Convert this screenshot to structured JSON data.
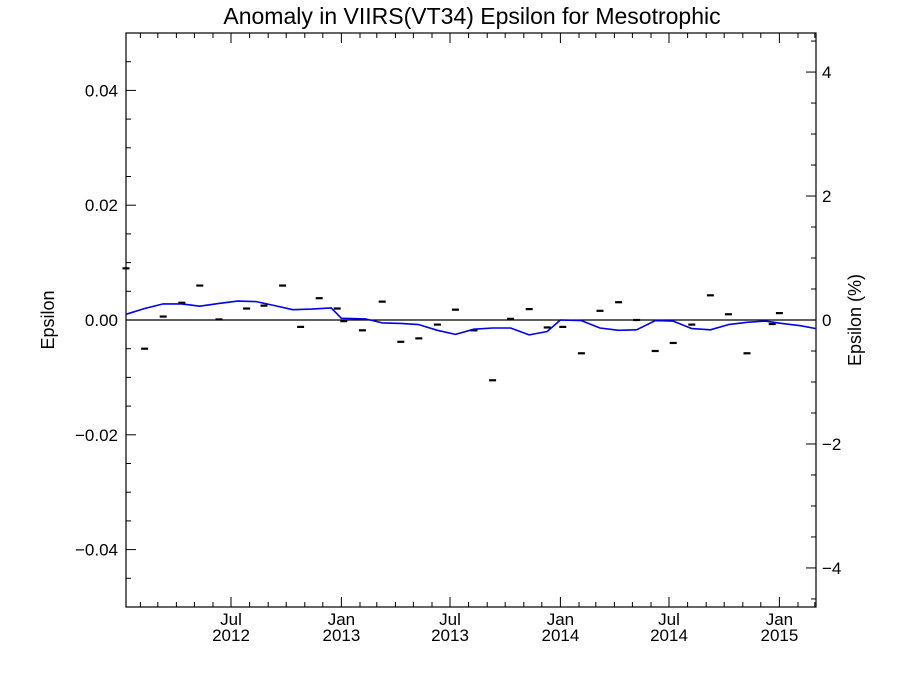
{
  "chart_data": {
    "type": "scatter",
    "title": "Anomaly in VIIRS(VT34) Epsilon for Mesotrophic",
    "ylabel": "Epsilon",
    "y2label": "Epsilon (%)",
    "xlim": [
      "2012-01-08",
      "2015-03-03"
    ],
    "ylim": [
      -0.05,
      0.05
    ],
    "y2lim": [
      -4.63,
      4.63
    ],
    "grid": false,
    "x_ticks": [
      {
        "date": "2012-07-01",
        "month": "Jul",
        "year": "2012"
      },
      {
        "date": "2013-01-01",
        "month": "Jan",
        "year": "2013"
      },
      {
        "date": "2013-07-01",
        "month": "Jul",
        "year": "2013"
      },
      {
        "date": "2014-01-01",
        "month": "Jan",
        "year": "2014"
      },
      {
        "date": "2014-07-01",
        "month": "Jul",
        "year": "2014"
      },
      {
        "date": "2015-01-01",
        "month": "Jan",
        "year": "2015"
      }
    ],
    "y_ticks": [
      "−0.04",
      "−0.02",
      "0.00",
      "0.02",
      "0.04"
    ],
    "y_tick_values": [
      -0.04,
      -0.02,
      0.0,
      0.02,
      0.04
    ],
    "y2_ticks": [
      "−4",
      "−2",
      "0",
      "2",
      "4"
    ],
    "y2_tick_values": [
      -4,
      -2,
      0,
      2,
      4
    ],
    "reference_line": {
      "y": 0.0,
      "color": "#000000"
    },
    "series": [
      {
        "type": "scatter",
        "marker": "dash",
        "color": "#000000",
        "points": [
          {
            "x": "2012-01-08",
            "y": 0.009
          },
          {
            "x": "2012-02-08",
            "y": -0.005
          },
          {
            "x": "2012-03-10",
            "y": 0.0006
          },
          {
            "x": "2012-04-10",
            "y": 0.003
          },
          {
            "x": "2012-05-10",
            "y": 0.006
          },
          {
            "x": "2012-06-11",
            "y": 0.0001
          },
          {
            "x": "2012-07-27",
            "y": 0.002
          },
          {
            "x": "2012-08-25",
            "y": 0.0025
          },
          {
            "x": "2012-09-25",
            "y": 0.006
          },
          {
            "x": "2012-10-25",
            "y": -0.0012
          },
          {
            "x": "2012-11-25",
            "y": 0.0038
          },
          {
            "x": "2012-12-25",
            "y": 0.002
          },
          {
            "x": "2013-01-05",
            "y": -0.0002
          },
          {
            "x": "2013-02-05",
            "y": -0.0018
          },
          {
            "x": "2013-03-10",
            "y": 0.0032
          },
          {
            "x": "2013-04-10",
            "y": -0.0038
          },
          {
            "x": "2013-05-10",
            "y": -0.0032
          },
          {
            "x": "2013-06-10",
            "y": -0.0008
          },
          {
            "x": "2013-07-10",
            "y": 0.0018
          },
          {
            "x": "2013-08-10",
            "y": -0.0018
          },
          {
            "x": "2013-09-10",
            "y": -0.0105
          },
          {
            "x": "2013-10-10",
            "y": 0.0002
          },
          {
            "x": "2013-11-10",
            "y": 0.0019
          },
          {
            "x": "2013-12-10",
            "y": -0.0013
          },
          {
            "x": "2014-01-05",
            "y": -0.0012
          },
          {
            "x": "2014-02-05",
            "y": -0.0058
          },
          {
            "x": "2014-03-08",
            "y": 0.0016
          },
          {
            "x": "2014-04-08",
            "y": 0.0031
          },
          {
            "x": "2014-05-08",
            "y": 0.0
          },
          {
            "x": "2014-06-08",
            "y": -0.0054
          },
          {
            "x": "2014-07-08",
            "y": -0.004
          },
          {
            "x": "2014-08-08",
            "y": -0.0008
          },
          {
            "x": "2014-09-08",
            "y": 0.0043
          },
          {
            "x": "2014-10-08",
            "y": 0.001
          },
          {
            "x": "2014-11-08",
            "y": -0.0058
          },
          {
            "x": "2014-12-20",
            "y": -0.0007
          },
          {
            "x": "2015-01-01",
            "y": 0.0012
          }
        ]
      },
      {
        "type": "line",
        "color": "#0000ee",
        "points": [
          {
            "x": "2012-01-08",
            "y": 0.001
          },
          {
            "x": "2012-02-08",
            "y": 0.002
          },
          {
            "x": "2012-03-10",
            "y": 0.0028
          },
          {
            "x": "2012-04-10",
            "y": 0.0028
          },
          {
            "x": "2012-05-10",
            "y": 0.0024
          },
          {
            "x": "2012-06-11",
            "y": 0.0029
          },
          {
            "x": "2012-07-12",
            "y": 0.0033
          },
          {
            "x": "2012-08-12",
            "y": 0.0032
          },
          {
            "x": "2012-09-12",
            "y": 0.0025
          },
          {
            "x": "2012-10-12",
            "y": 0.0018
          },
          {
            "x": "2012-11-12",
            "y": 0.0019
          },
          {
            "x": "2012-12-15",
            "y": 0.0021
          },
          {
            "x": "2013-01-01",
            "y": 0.0003
          },
          {
            "x": "2013-02-10",
            "y": 0.0002
          },
          {
            "x": "2013-03-10",
            "y": -0.0005
          },
          {
            "x": "2013-04-10",
            "y": -0.0006
          },
          {
            "x": "2013-05-10",
            "y": -0.0008
          },
          {
            "x": "2013-06-10",
            "y": -0.0018
          },
          {
            "x": "2013-07-10",
            "y": -0.0025
          },
          {
            "x": "2013-08-10",
            "y": -0.0016
          },
          {
            "x": "2013-09-10",
            "y": -0.0014
          },
          {
            "x": "2013-10-10",
            "y": -0.0014
          },
          {
            "x": "2013-11-10",
            "y": -0.0026
          },
          {
            "x": "2013-12-10",
            "y": -0.002
          },
          {
            "x": "2014-01-01",
            "y": 0.0
          },
          {
            "x": "2014-02-05",
            "y": -0.0001
          },
          {
            "x": "2014-03-08",
            "y": -0.0014
          },
          {
            "x": "2014-04-08",
            "y": -0.0018
          },
          {
            "x": "2014-05-08",
            "y": -0.0017
          },
          {
            "x": "2014-06-08",
            "y": -0.0001
          },
          {
            "x": "2014-07-08",
            "y": -0.0002
          },
          {
            "x": "2014-08-08",
            "y": -0.0015
          },
          {
            "x": "2014-09-08",
            "y": -0.0017
          },
          {
            "x": "2014-10-08",
            "y": -0.0008
          },
          {
            "x": "2014-11-08",
            "y": -0.0004
          },
          {
            "x": "2014-12-08",
            "y": -0.0002
          },
          {
            "x": "2015-01-05",
            "y": -0.0006
          },
          {
            "x": "2015-02-05",
            "y": -0.001
          },
          {
            "x": "2015-03-03",
            "y": -0.0015
          }
        ]
      }
    ]
  }
}
